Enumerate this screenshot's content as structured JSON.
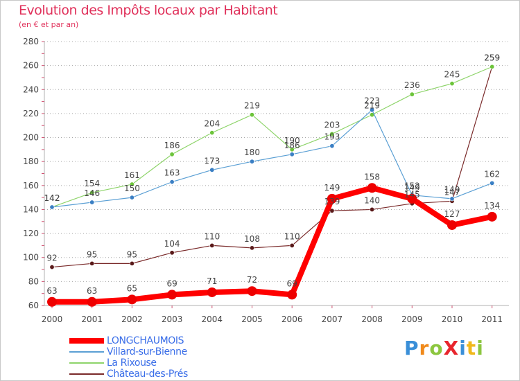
{
  "title": "Evolution des Impôts locaux par Habitant",
  "subtitle": "(en € et par an)",
  "brand": {
    "text": "ProXiti",
    "letter_colors": [
      "#3a8fd8",
      "#f08a1c",
      "#8cc63f",
      "#e8252d",
      "#3a8fd8",
      "#f0b81c",
      "#8cc63f"
    ]
  },
  "colors": {
    "axis": "#b0b0b0",
    "grid": "#a8a8a8",
    "tick_text": "#444444",
    "label_text": "#444444",
    "title": "#e0305a"
  },
  "chart_data": {
    "type": "line",
    "title": "Evolution des Impôts locaux par Habitant",
    "subtitle": "(en € et par an)",
    "x": [
      "2000",
      "2001",
      "2002",
      "2003",
      "2004",
      "2005",
      "2006",
      "2007",
      "2008",
      "2009",
      "2010",
      "2011"
    ],
    "ylim": [
      60,
      280
    ],
    "yticks": [
      "60",
      "80",
      "100",
      "120",
      "140",
      "160",
      "180",
      "200",
      "220",
      "240",
      "260",
      "280"
    ],
    "grid": "horizontal dotted",
    "legend_position": "bottom-left",
    "series": [
      {
        "name": "Château-des-Prés",
        "color": "#7a2a2a",
        "point_color": "#5a1a1a",
        "values": [
          92,
          95,
          95,
          104,
          110,
          108,
          110,
          139,
          140,
          145,
          147,
          259
        ],
        "labels": [
          "92",
          "95",
          "95",
          "104",
          "110",
          "108",
          "110",
          "139",
          "140",
          "145",
          "147",
          "259"
        ]
      },
      {
        "name": "La Rixouse",
        "color": "#8ed46a",
        "point_color": "#6cc43a",
        "values": [
          142,
          154,
          161,
          186,
          204,
          219,
          190,
          203,
          219,
          236,
          245,
          259
        ],
        "labels": [
          "142",
          "154",
          "161",
          "186",
          "204",
          "219",
          "190",
          "203",
          "219",
          "236",
          "245",
          "259"
        ]
      },
      {
        "name": "Villard-sur-Bienne",
        "color": "#5a9fd4",
        "point_color": "#3a7fc4",
        "values": [
          142,
          146,
          150,
          163,
          173,
          180,
          186,
          193,
          223,
          152,
          149,
          162
        ],
        "labels": [
          "142",
          "146",
          "150",
          "163",
          "173",
          "180",
          "186",
          "193",
          "223",
          "152",
          "149",
          "162"
        ]
      },
      {
        "name": "LONGCHAUMOIS",
        "color": "#ff0000",
        "point_color": "#ee0000",
        "values": [
          63,
          63,
          65,
          69,
          71,
          72,
          69,
          149,
          158,
          149,
          127,
          134
        ],
        "labels": [
          "63",
          "63",
          "65",
          "69",
          "71",
          "72",
          "69",
          "149",
          "158",
          "149",
          "127",
          "134"
        ]
      }
    ]
  },
  "legend": [
    {
      "name": "LONGCHAUMOIS",
      "color": "#ff0000",
      "text_color": "#3a6ee8"
    },
    {
      "name": "Villard-sur-Bienne",
      "color": "#5a9fd4",
      "text_color": "#3a6ee8"
    },
    {
      "name": "La Rixouse",
      "color": "#8ed46a",
      "text_color": "#3a6ee8"
    },
    {
      "name": "Château-des-Prés",
      "color": "#7a2a2a",
      "text_color": "#3a6ee8"
    }
  ]
}
